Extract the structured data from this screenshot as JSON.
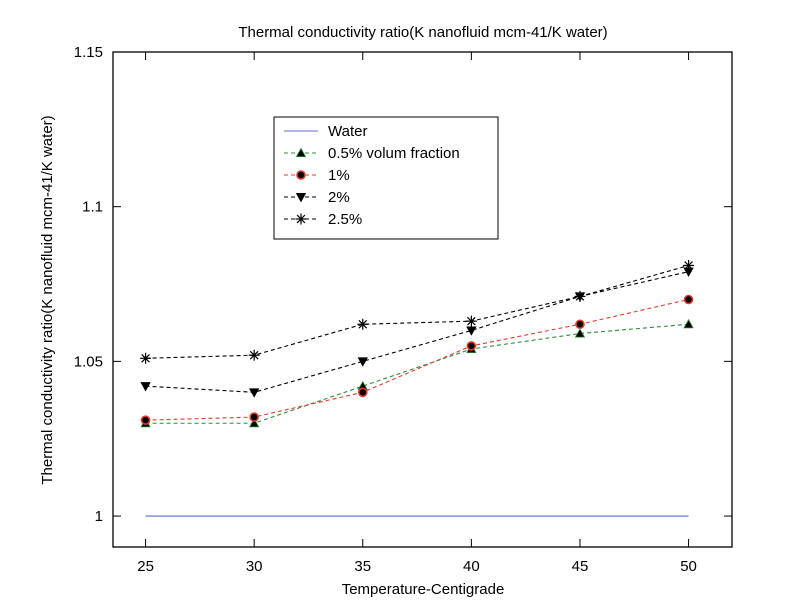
{
  "chart_data": {
    "type": "line",
    "title": "Thermal conductivity ratio(K nanofluid mcm-41/K water)",
    "xlabel": "Temperature-Centigrade",
    "ylabel": "Thermal conductivity ratio(K nanofluid mcm-41/K water)",
    "x": [
      25,
      30,
      35,
      40,
      45,
      50
    ],
    "xticks": [
      "25",
      "30",
      "35",
      "40",
      "45",
      "50"
    ],
    "yticks": [
      "1",
      "1.05",
      "1.1",
      "1.15"
    ],
    "xlim": [
      23.5,
      52
    ],
    "ylim": [
      0.99,
      1.15
    ],
    "grid": false,
    "legend_position": "upper-center",
    "series": [
      {
        "name": "Water",
        "values": [
          1.0,
          1.0,
          1.0,
          1.0,
          1.0,
          1.0
        ],
        "color": "#5a6fd0",
        "dash": "solid",
        "marker": "none"
      },
      {
        "name": "0.5% volum fraction",
        "values": [
          1.03,
          1.03,
          1.042,
          1.054,
          1.059,
          1.062
        ],
        "color": "#2e8b3a",
        "dash": "dashed",
        "marker": "triangle-up"
      },
      {
        "name": "1%",
        "values": [
          1.031,
          1.032,
          1.04,
          1.055,
          1.062,
          1.07
        ],
        "color": "#e23b2a",
        "dash": "dashed",
        "marker": "circle"
      },
      {
        "name": "2%",
        "values": [
          1.042,
          1.04,
          1.05,
          1.06,
          1.071,
          1.079
        ],
        "color": "#000000",
        "dash": "dashed",
        "marker": "triangle-down"
      },
      {
        "name": "2.5%",
        "values": [
          1.051,
          1.052,
          1.062,
          1.063,
          1.071,
          1.081
        ],
        "color": "#000000",
        "dash": "dashed",
        "marker": "asterisk"
      }
    ]
  }
}
